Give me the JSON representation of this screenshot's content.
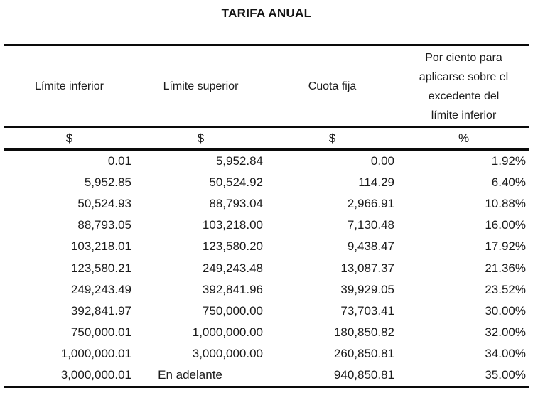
{
  "title": "TARIFA ANUAL",
  "colors": {
    "text": "#1b1b1b",
    "rule": "#0a0a0a",
    "background": "#ffffff"
  },
  "table": {
    "columns": [
      {
        "label": "Límite inferior",
        "unit": "$"
      },
      {
        "label": "Límite superior",
        "unit": "$"
      },
      {
        "label": "Cuota fija",
        "unit": "$"
      },
      {
        "label": "Por ciento para\naplicarse sobre el\nexcedente del\nlímite inferior",
        "unit": "%"
      }
    ],
    "rows": [
      [
        "0.01",
        "5,952.84",
        "0.00",
        "1.92%"
      ],
      [
        "5,952.85",
        "50,524.92",
        "114.29",
        "6.40%"
      ],
      [
        "50,524.93",
        "88,793.04",
        "2,966.91",
        "10.88%"
      ],
      [
        "88,793.05",
        "103,218.00",
        "7,130.48",
        "16.00%"
      ],
      [
        "103,218.01",
        "123,580.20",
        "9,438.47",
        "17.92%"
      ],
      [
        "123,580.21",
        "249,243.48",
        "13,087.37",
        "21.36%"
      ],
      [
        "249,243.49",
        "392,841.96",
        "39,929.05",
        "23.52%"
      ],
      [
        "392,841.97",
        "750,000.00",
        "73,703.41",
        "30.00%"
      ],
      [
        "750,000.01",
        "1,000,000.00",
        "180,850.82",
        "32.00%"
      ],
      [
        "1,000,000.01",
        "3,000,000.00",
        "260,850.81",
        "34.00%"
      ],
      [
        "3,000,000.01",
        "En adelante",
        "940,850.81",
        "35.00%"
      ]
    ]
  }
}
